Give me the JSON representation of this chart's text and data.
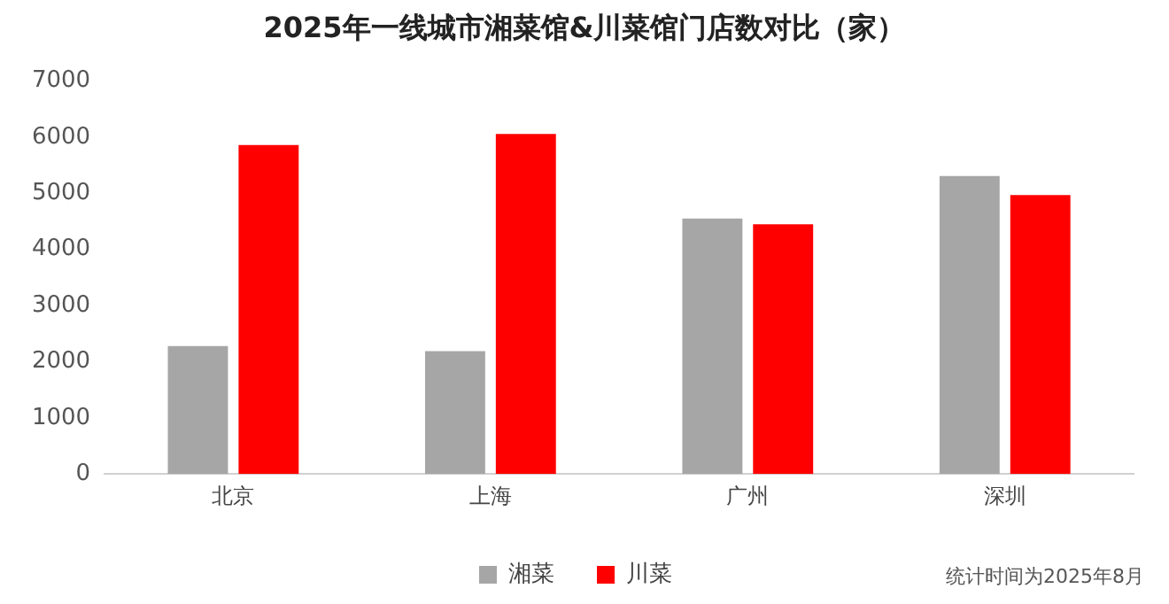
{
  "chart_data": {
    "type": "bar",
    "title": "2025年一线城市湘菜馆&川菜馆门店数对比（家）",
    "categories": [
      "北京",
      "上海",
      "广州",
      "深圳"
    ],
    "series": [
      {
        "name": "湘菜",
        "color": "#a6a6a6",
        "values": [
          2280,
          2190,
          4550,
          5310
        ]
      },
      {
        "name": "川菜",
        "color": "#ff0000",
        "values": [
          5860,
          6060,
          4450,
          4970
        ]
      }
    ],
    "ylim": [
      0,
      7000
    ],
    "yticks": [
      0,
      1000,
      2000,
      3000,
      4000,
      5000,
      6000,
      7000
    ],
    "grid": false,
    "legend": "bottom",
    "annotations": [
      "统计时间为2025年8月"
    ]
  }
}
